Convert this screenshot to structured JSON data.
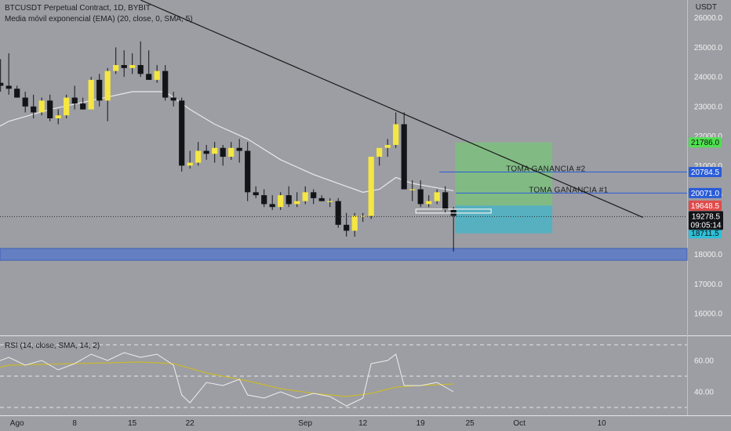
{
  "header": {
    "symbol_line": "BTCUSDT Perpetual Contract, 1D, BYBIT",
    "indicator_line": "Media móvil exponencial (EMA) (20, close, 0, SMA, 5)",
    "currency": "USDT"
  },
  "rsi_panel": {
    "label": "RSI (14, close, SMA, 14, 2)"
  },
  "colors": {
    "background": "#9c9ea3",
    "bull": "#f5e642",
    "bear": "#131418",
    "ema": "#e8e9ec",
    "trendline": "#1a1a1a",
    "profit_zone": "#7bc27a",
    "stop_zone": "#4ab3c6",
    "support_band": "#5b79c8",
    "take_profit_line": "#2a5cd8",
    "current_price": "#131418",
    "rsi_line": "#eeeeee",
    "rsi_sma": "#c9b830"
  },
  "chart_data": {
    "type": "candlestick",
    "title": "BTCUSDT Perpetual Contract, 1D, BYBIT",
    "ylim": [
      15300,
      26600
    ],
    "y_ticks": [
      16000,
      17000,
      18000,
      19000,
      20000,
      21000,
      22000,
      23000,
      24000,
      25000,
      26000
    ],
    "y_tick_labels": [
      "16000.0",
      "17000.0",
      "18000.0",
      "19000.0",
      "20000.0",
      "21000.0",
      "22000.0",
      "23000.0",
      "24000.0",
      "25000.0",
      "26000.0"
    ],
    "x_tick_labels": [
      "Ago",
      "8",
      "15",
      "22",
      "Sep",
      "12",
      "19",
      "25",
      "Oct",
      "10"
    ],
    "x_tick_days": [
      1,
      8,
      15,
      22,
      36,
      43,
      50,
      56,
      62,
      72
    ],
    "start_date": "2022-07-27",
    "candles": [
      {
        "d": -4,
        "o": 20800,
        "h": 22300,
        "l": 20700,
        "c": 22000
      },
      {
        "d": -3,
        "o": 22000,
        "h": 23800,
        "l": 21800,
        "c": 23600
      },
      {
        "d": -2,
        "o": 23600,
        "h": 24100,
        "l": 23400,
        "c": 23800
      },
      {
        "d": -1,
        "o": 23800,
        "h": 24600,
        "l": 23500,
        "c": 23700
      },
      {
        "d": 0,
        "o": 23700,
        "h": 24800,
        "l": 23400,
        "c": 23600
      },
      {
        "d": 1,
        "o": 23600,
        "h": 23700,
        "l": 23300,
        "c": 23300
      },
      {
        "d": 2,
        "o": 23300,
        "h": 23500,
        "l": 22800,
        "c": 23000
      },
      {
        "d": 3,
        "o": 23000,
        "h": 23400,
        "l": 22600,
        "c": 22800
      },
      {
        "d": 4,
        "o": 22800,
        "h": 23300,
        "l": 22700,
        "c": 23200
      },
      {
        "d": 5,
        "o": 23200,
        "h": 23400,
        "l": 22500,
        "c": 22600
      },
      {
        "d": 6,
        "o": 22600,
        "h": 22900,
        "l": 22400,
        "c": 22700
      },
      {
        "d": 7,
        "o": 22700,
        "h": 23400,
        "l": 22600,
        "c": 23300
      },
      {
        "d": 8,
        "o": 23300,
        "h": 23700,
        "l": 22900,
        "c": 23100
      },
      {
        "d": 9,
        "o": 23100,
        "h": 23300,
        "l": 22900,
        "c": 22900
      },
      {
        "d": 10,
        "o": 22900,
        "h": 24000,
        "l": 22900,
        "c": 23900
      },
      {
        "d": 11,
        "o": 23900,
        "h": 24100,
        "l": 23000,
        "c": 23200
      },
      {
        "d": 12,
        "o": 23200,
        "h": 24300,
        "l": 22500,
        "c": 24200
      },
      {
        "d": 13,
        "o": 24200,
        "h": 25000,
        "l": 24100,
        "c": 24400
      },
      {
        "d": 14,
        "o": 24400,
        "h": 24900,
        "l": 24000,
        "c": 24300
      },
      {
        "d": 15,
        "o": 24300,
        "h": 24800,
        "l": 24100,
        "c": 24400
      },
      {
        "d": 16,
        "o": 24400,
        "h": 25200,
        "l": 24000,
        "c": 24100
      },
      {
        "d": 17,
        "o": 24100,
        "h": 24900,
        "l": 23900,
        "c": 23900
      },
      {
        "d": 18,
        "o": 23900,
        "h": 24400,
        "l": 23800,
        "c": 24200
      },
      {
        "d": 19,
        "o": 24200,
        "h": 24400,
        "l": 23200,
        "c": 23300
      },
      {
        "d": 20,
        "o": 23300,
        "h": 23500,
        "l": 23000,
        "c": 23200
      },
      {
        "d": 21,
        "o": 23200,
        "h": 23300,
        "l": 20800,
        "c": 21000
      },
      {
        "d": 22,
        "o": 21000,
        "h": 21500,
        "l": 20900,
        "c": 21100
      },
      {
        "d": 23,
        "o": 21100,
        "h": 21800,
        "l": 21000,
        "c": 21500
      },
      {
        "d": 24,
        "o": 21500,
        "h": 21700,
        "l": 21200,
        "c": 21400
      },
      {
        "d": 25,
        "o": 21400,
        "h": 21800,
        "l": 21100,
        "c": 21600
      },
      {
        "d": 26,
        "o": 21600,
        "h": 21700,
        "l": 21000,
        "c": 21300
      },
      {
        "d": 27,
        "o": 21300,
        "h": 21800,
        "l": 21200,
        "c": 21600
      },
      {
        "d": 28,
        "o": 21600,
        "h": 21900,
        "l": 21100,
        "c": 21500
      },
      {
        "d": 29,
        "o": 21500,
        "h": 21800,
        "l": 19800,
        "c": 20100
      },
      {
        "d": 30,
        "o": 20100,
        "h": 20300,
        "l": 19900,
        "c": 20000
      },
      {
        "d": 31,
        "o": 20000,
        "h": 20200,
        "l": 19600,
        "c": 19700
      },
      {
        "d": 32,
        "o": 19700,
        "h": 20000,
        "l": 19500,
        "c": 19600
      },
      {
        "d": 33,
        "o": 19600,
        "h": 20100,
        "l": 19500,
        "c": 20000
      },
      {
        "d": 34,
        "o": 20000,
        "h": 20300,
        "l": 19600,
        "c": 19700
      },
      {
        "d": 35,
        "o": 19700,
        "h": 20100,
        "l": 19600,
        "c": 19800
      },
      {
        "d": 36,
        "o": 19800,
        "h": 20300,
        "l": 19700,
        "c": 20100
      },
      {
        "d": 37,
        "o": 20100,
        "h": 20200,
        "l": 19700,
        "c": 19900
      },
      {
        "d": 38,
        "o": 19900,
        "h": 20000,
        "l": 19800,
        "c": 19800
      },
      {
        "d": 39,
        "o": 19800,
        "h": 19900,
        "l": 19600,
        "c": 19800
      },
      {
        "d": 40,
        "o": 19800,
        "h": 19900,
        "l": 18900,
        "c": 19000
      },
      {
        "d": 41,
        "o": 19000,
        "h": 19400,
        "l": 18600,
        "c": 18800
      },
      {
        "d": 42,
        "o": 18800,
        "h": 19400,
        "l": 18600,
        "c": 19300
      },
      {
        "d": 43,
        "o": 19300,
        "h": 19400,
        "l": 19100,
        "c": 19300
      },
      {
        "d": 44,
        "o": 19300,
        "h": 21300,
        "l": 19200,
        "c": 21300
      },
      {
        "d": 45,
        "o": 21300,
        "h": 21600,
        "l": 21000,
        "c": 21600
      },
      {
        "d": 46,
        "o": 21600,
        "h": 21900,
        "l": 21300,
        "c": 21700
      },
      {
        "d": 47,
        "o": 21700,
        "h": 22800,
        "l": 21600,
        "c": 22400
      },
      {
        "d": 48,
        "o": 22400,
        "h": 22800,
        "l": 20200,
        "c": 20200
      },
      {
        "d": 49,
        "o": 20200,
        "h": 20500,
        "l": 19800,
        "c": 20200
      },
      {
        "d": 50,
        "o": 20200,
        "h": 20500,
        "l": 19600,
        "c": 19700
      },
      {
        "d": 51,
        "o": 19700,
        "h": 20000,
        "l": 19600,
        "c": 19800
      },
      {
        "d": 52,
        "o": 19800,
        "h": 20200,
        "l": 19700,
        "c": 20100
      },
      {
        "d": 53,
        "o": 20100,
        "h": 20300,
        "l": 19400,
        "c": 19500
      },
      {
        "d": 54,
        "o": 19500,
        "h": 19600,
        "l": 18100,
        "c": 19300
      }
    ],
    "ema20": [
      {
        "d": -4,
        "v": 21900
      },
      {
        "d": 0,
        "v": 22500
      },
      {
        "d": 5,
        "v": 22900
      },
      {
        "d": 10,
        "v": 23200
      },
      {
        "d": 15,
        "v": 23500
      },
      {
        "d": 19,
        "v": 23500
      },
      {
        "d": 22,
        "v": 22900
      },
      {
        "d": 25,
        "v": 22400
      },
      {
        "d": 29,
        "v": 21900
      },
      {
        "d": 33,
        "v": 21200
      },
      {
        "d": 37,
        "v": 20700
      },
      {
        "d": 40,
        "v": 20400
      },
      {
        "d": 43,
        "v": 20100
      },
      {
        "d": 45,
        "v": 20200
      },
      {
        "d": 47,
        "v": 20600
      },
      {
        "d": 49,
        "v": 20400
      },
      {
        "d": 52,
        "v": 20250
      },
      {
        "d": 54,
        "v": 20150
      }
    ],
    "trendline": {
      "from_day": 16,
      "from_price": 26600,
      "to_day": 77,
      "to_price": 19250
    },
    "position": {
      "start_day": 54,
      "end_day": 66,
      "target": 21786.0,
      "entry": 19648.5,
      "stop": 18711.5
    },
    "take_profits": [
      {
        "label": "TOMA GANANCIA #2",
        "price": 20784.5,
        "start_day": 52
      },
      {
        "label": "TOMA GANANCIA #1",
        "price": 20071.0,
        "start_day": 54
      }
    ],
    "support_zone": [
      17800,
      18200
    ],
    "current_price": 19278.5,
    "countdown": "09:05:14",
    "entry_box": {
      "start_day": 50,
      "end_day": 58,
      "price": 19450
    },
    "price_tags": [
      {
        "price": 21786.0,
        "label": "21786.0",
        "color": "#4fe04f",
        "text": "#111111"
      },
      {
        "price": 20784.5,
        "label": "20784.5",
        "color": "#2a5cd8",
        "text": "#ffffff"
      },
      {
        "price": 20071.0,
        "label": "20071.0",
        "color": "#2a5cd8",
        "text": "#ffffff"
      },
      {
        "price": 19648.5,
        "label": "19648.5",
        "color": "#e04a4a",
        "text": "#ffffff"
      },
      {
        "price": 18711.5,
        "label": "18711.5",
        "color": "#2ec0d8",
        "text": "#111111"
      }
    ],
    "rsi": {
      "ylim": [
        25,
        75
      ],
      "levels": [
        70,
        50,
        30
      ],
      "tick_labels": [
        {
          "v": 60,
          "label": "60.00"
        },
        {
          "v": 40,
          "label": "40.00"
        }
      ],
      "rsi_values": [
        {
          "d": -4,
          "v": 48
        },
        {
          "d": -2,
          "v": 58
        },
        {
          "d": 0,
          "v": 62
        },
        {
          "d": 2,
          "v": 57
        },
        {
          "d": 4,
          "v": 60
        },
        {
          "d": 6,
          "v": 54
        },
        {
          "d": 8,
          "v": 58
        },
        {
          "d": 10,
          "v": 64
        },
        {
          "d": 12,
          "v": 60
        },
        {
          "d": 14,
          "v": 65
        },
        {
          "d": 16,
          "v": 62
        },
        {
          "d": 18,
          "v": 64
        },
        {
          "d": 20,
          "v": 57
        },
        {
          "d": 21,
          "v": 38
        },
        {
          "d": 22,
          "v": 33
        },
        {
          "d": 24,
          "v": 46
        },
        {
          "d": 26,
          "v": 44
        },
        {
          "d": 28,
          "v": 48
        },
        {
          "d": 29,
          "v": 38
        },
        {
          "d": 31,
          "v": 36
        },
        {
          "d": 33,
          "v": 40
        },
        {
          "d": 35,
          "v": 36
        },
        {
          "d": 37,
          "v": 39
        },
        {
          "d": 39,
          "v": 37
        },
        {
          "d": 41,
          "v": 31
        },
        {
          "d": 43,
          "v": 36
        },
        {
          "d": 44,
          "v": 58
        },
        {
          "d": 46,
          "v": 60
        },
        {
          "d": 47,
          "v": 64
        },
        {
          "d": 48,
          "v": 44
        },
        {
          "d": 50,
          "v": 44
        },
        {
          "d": 52,
          "v": 46
        },
        {
          "d": 54,
          "v": 40
        }
      ],
      "sma_values": [
        {
          "d": -4,
          "v": 52
        },
        {
          "d": 0,
          "v": 57
        },
        {
          "d": 8,
          "v": 58
        },
        {
          "d": 16,
          "v": 59
        },
        {
          "d": 20,
          "v": 58
        },
        {
          "d": 24,
          "v": 52
        },
        {
          "d": 29,
          "v": 47
        },
        {
          "d": 33,
          "v": 42
        },
        {
          "d": 37,
          "v": 39
        },
        {
          "d": 41,
          "v": 37
        },
        {
          "d": 44,
          "v": 39
        },
        {
          "d": 47,
          "v": 43
        },
        {
          "d": 50,
          "v": 44
        },
        {
          "d": 54,
          "v": 45
        }
      ]
    }
  }
}
